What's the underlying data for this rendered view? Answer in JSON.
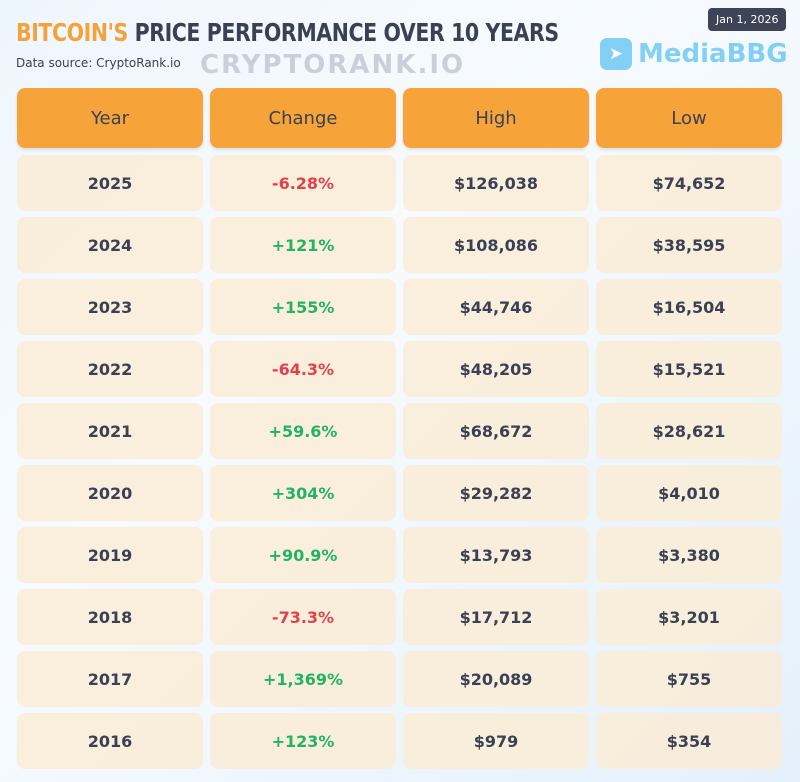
{
  "header": {
    "title_accent": "BITCOIN'S",
    "title_rest": " PRICE PERFORMANCE OVER 10 YEARS",
    "source": "Data source: CryptoRank.io",
    "date": "Jan 1, 2026"
  },
  "watermarks": {
    "brand": "MediaBBG",
    "background": "CRYPTORANK.IO"
  },
  "colors": {
    "accent": "#f6a43a",
    "positive": "#22b462",
    "negative": "#e0424b"
  },
  "table": {
    "columns": [
      "Year",
      "Change",
      "High",
      "Low"
    ],
    "rows": [
      {
        "year": "2025",
        "change": "-6.28%",
        "high": "$126,038",
        "low": "$74,652"
      },
      {
        "year": "2024",
        "change": "+121%",
        "high": "$108,086",
        "low": "$38,595"
      },
      {
        "year": "2023",
        "change": "+155%",
        "high": "$44,746",
        "low": "$16,504"
      },
      {
        "year": "2022",
        "change": "-64.3%",
        "high": "$48,205",
        "low": "$15,521"
      },
      {
        "year": "2021",
        "change": "+59.6%",
        "high": "$68,672",
        "low": "$28,621"
      },
      {
        "year": "2020",
        "change": "+304%",
        "high": "$29,282",
        "low": "$4,010"
      },
      {
        "year": "2019",
        "change": "+90.9%",
        "high": "$13,793",
        "low": "$3,380"
      },
      {
        "year": "2018",
        "change": "-73.3%",
        "high": "$17,712",
        "low": "$3,201"
      },
      {
        "year": "2017",
        "change": "+1,369%",
        "high": "$20,089",
        "low": "$755"
      },
      {
        "year": "2016",
        "change": "+123%",
        "high": "$979",
        "low": "$354"
      }
    ]
  }
}
